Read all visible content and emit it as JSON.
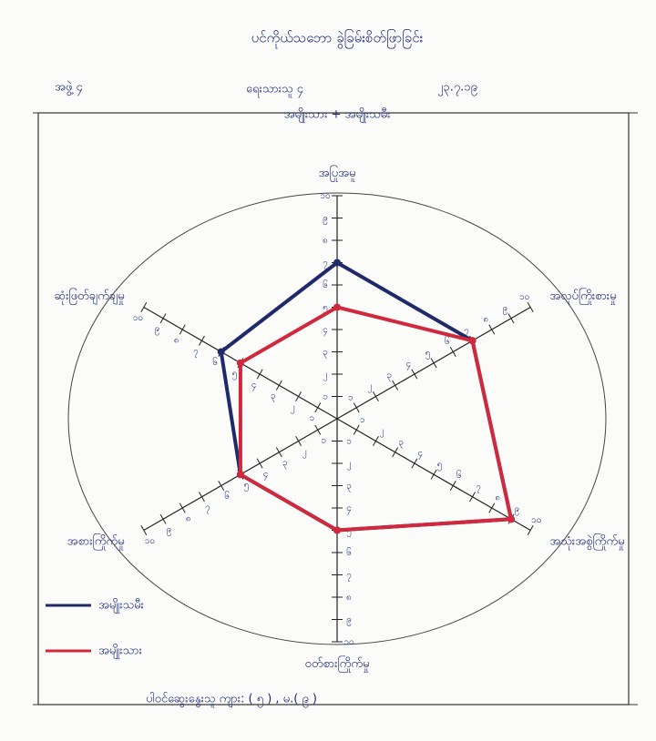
{
  "chart_data": {
    "type": "radar",
    "title": "ပင်ကိုယ်သဘော ခွဲခြမ်းစိတ်ဖြာခြင်း",
    "group": "အဖွဲ့ ၄",
    "writer": "ရေးသားသူ ၄",
    "date": "၂၃.၇.၁၉",
    "subtitle": "အမျိုးသား + အမျိုးသမီး",
    "footer": "ပါဝင်ဆွေးနွေးသူ ကျား: ( ၅ ) , မ.( ၉ )",
    "categories": [
      "အပြုအမူ",
      "အလုပ်ကြိုးစားမှု",
      "အသုံးအစွဲကြိုက်မှု",
      "ဝတ်စားကြိုက်မှု",
      "အစားကြိုက်မှု",
      "ဆုံးဖြတ်ချက်ချမှု"
    ],
    "series": [
      {
        "name": "အမျိုးသမီး",
        "color": "#1f2a6b",
        "values": [
          7,
          7,
          9,
          5,
          5,
          6
        ]
      },
      {
        "name": "အမျိုးသား",
        "color": "#d0283c",
        "values": [
          5,
          7,
          9,
          5,
          5,
          5
        ]
      }
    ],
    "ylim": [
      0,
      10
    ],
    "yticks": [
      {
        "value": 1,
        "label": "၁"
      },
      {
        "value": 2,
        "label": "၂"
      },
      {
        "value": 3,
        "label": "၃"
      },
      {
        "value": 4,
        "label": "၄"
      },
      {
        "value": 5,
        "label": "၅"
      },
      {
        "value": 6,
        "label": "၆"
      },
      {
        "value": 7,
        "label": "၇"
      },
      {
        "value": 8,
        "label": "၈"
      },
      {
        "value": 9,
        "label": "၉"
      },
      {
        "value": 10,
        "label": "၁၀"
      }
    ]
  }
}
